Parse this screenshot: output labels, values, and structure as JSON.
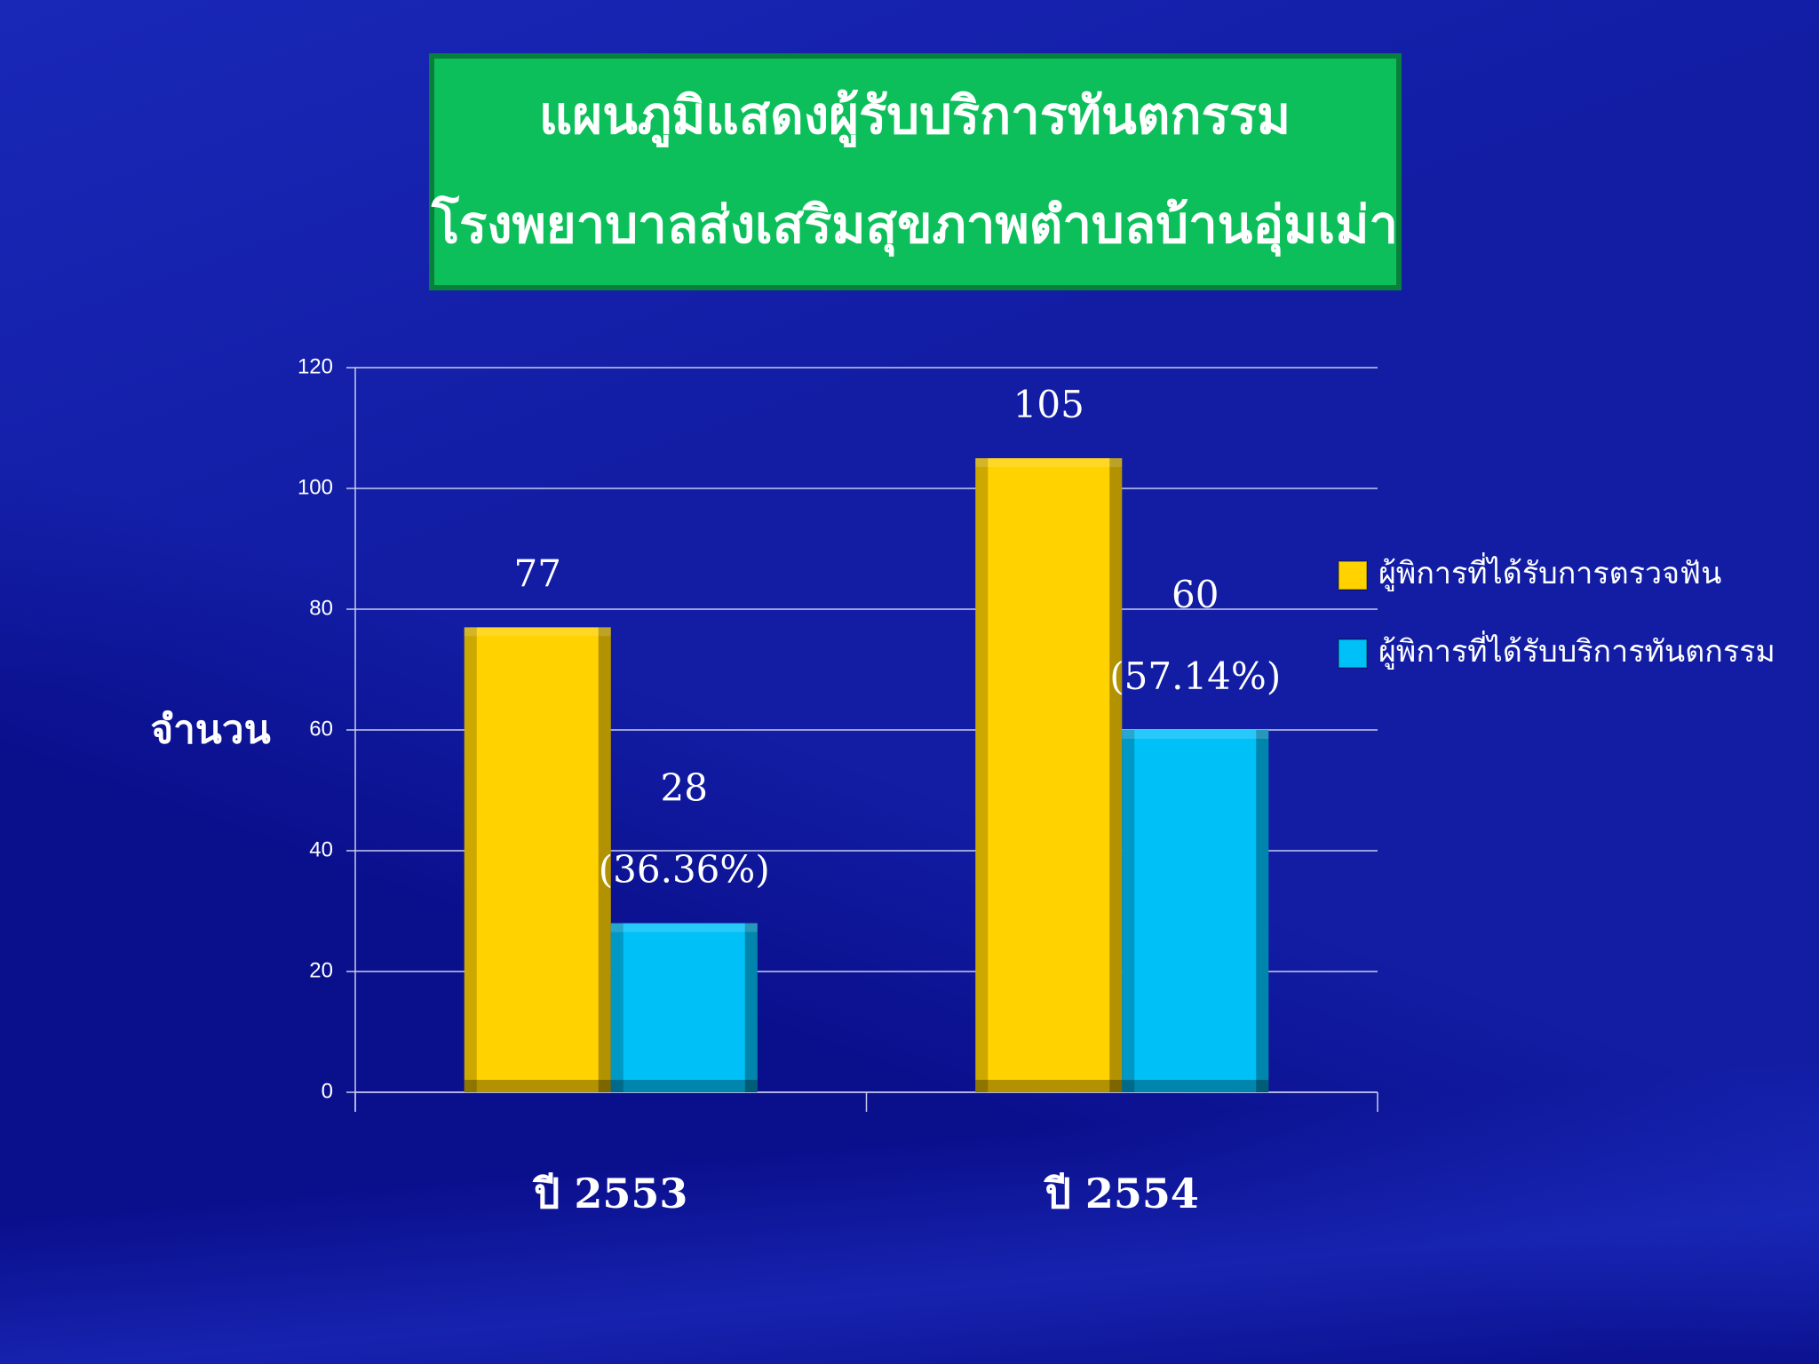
{
  "chart_data": {
    "type": "bar",
    "title": "แผนภูมิแสดงผู้รับบริการทันตกรรม",
    "subtitle": "โรงพยาบาลส่งเสริมสุขภาพตำบลบ้านอุ่มเม่า",
    "y_label": "จำนวน",
    "categories": [
      "ปี 2553",
      "ปี 2554"
    ],
    "series": [
      {
        "name": "ผู้พิการที่ได้รับการตรวจฟัน",
        "color": "#ffd200",
        "values": [
          77,
          105
        ]
      },
      {
        "name": "ผู้พิการที่ได้รับบริการทันตกรรม",
        "color": "#00c0f8",
        "values": [
          28,
          60
        ]
      }
    ],
    "annotations": [
      "(36.36%)",
      "(57.14%)"
    ],
    "ylim": [
      0,
      120
    ],
    "yticks": [
      0,
      20,
      40,
      60,
      80,
      100,
      120
    ],
    "grid": true,
    "legend": "right"
  }
}
